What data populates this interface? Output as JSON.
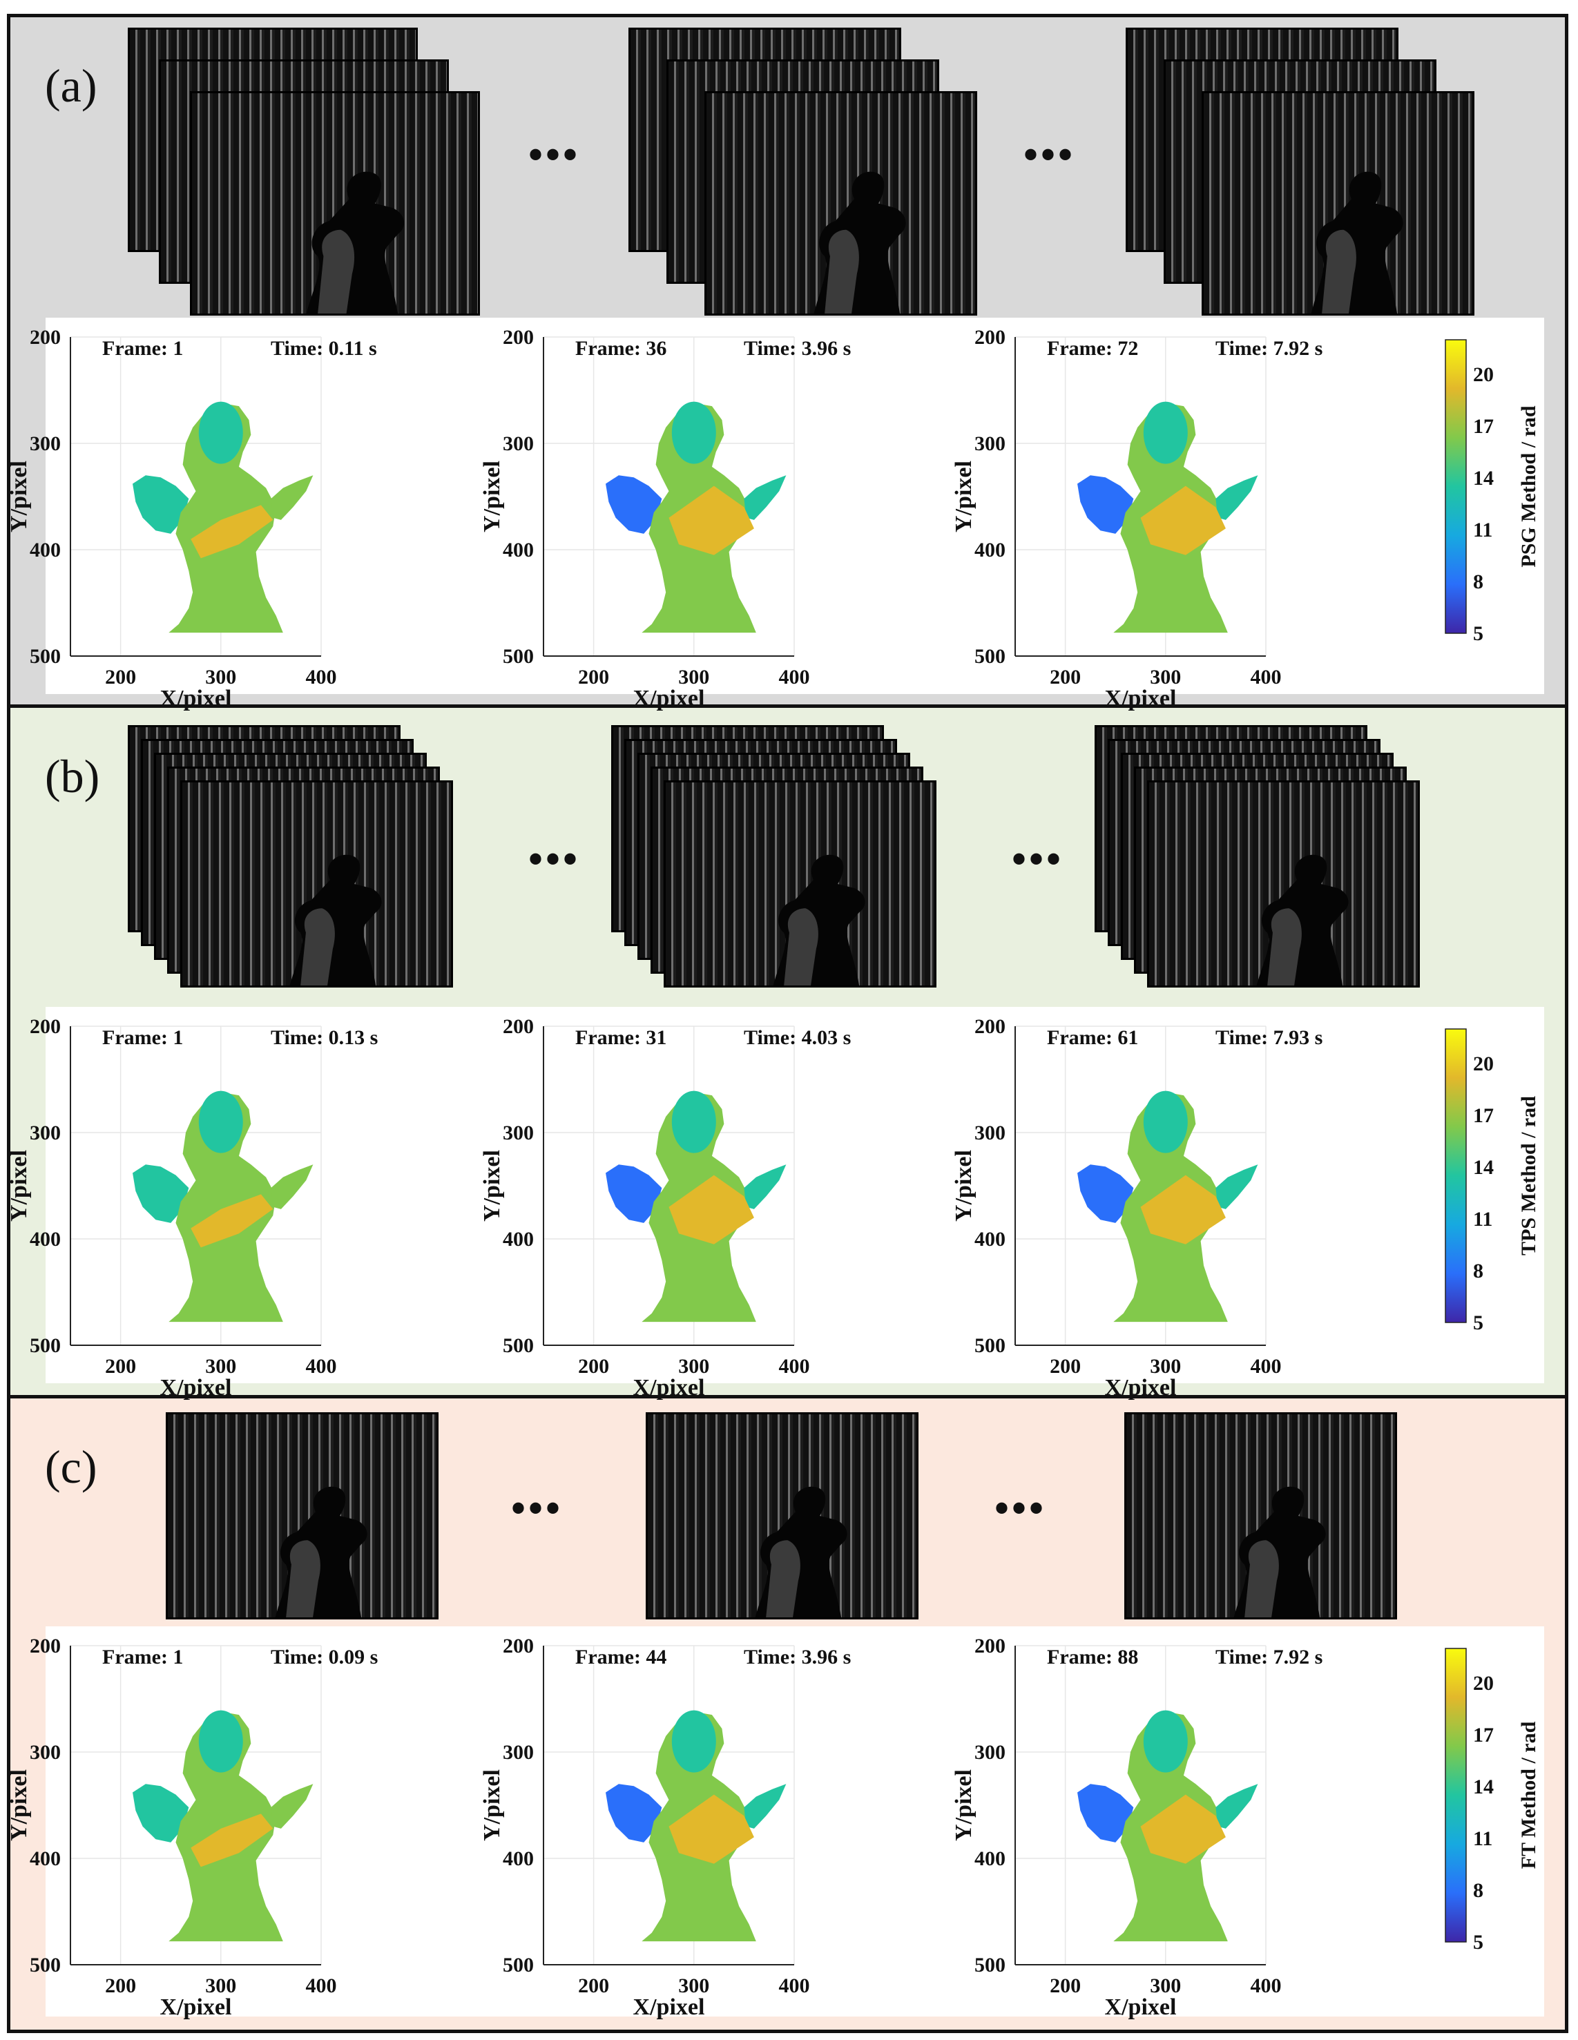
{
  "panels": [
    {
      "label": "(a)",
      "background": "#d9d9d9",
      "colorbar_title": "PSG Method / rad",
      "frames": [
        {
          "frame": "Frame: 1",
          "time": "Time: 0.11 s"
        },
        {
          "frame": "Frame: 36",
          "time": "Time: 3.96 s"
        },
        {
          "frame": "Frame: 72",
          "time": "Time: 7.92 s"
        }
      ]
    },
    {
      "label": "(b)",
      "background": "#e9f0df",
      "colorbar_title": "TPS Method / rad",
      "frames": [
        {
          "frame": "Frame: 1",
          "time": "Time: 0.13 s"
        },
        {
          "frame": "Frame: 31",
          "time": "Time: 4.03 s"
        },
        {
          "frame": "Frame: 61",
          "time": "Time: 7.93 s"
        }
      ]
    },
    {
      "label": "(c)",
      "background": "#fce8de",
      "colorbar_title": "FT Method / rad",
      "frames": [
        {
          "frame": "Frame: 1",
          "time": "Time: 0.09 s"
        },
        {
          "frame": "Frame: 44",
          "time": "Time: 3.96 s"
        },
        {
          "frame": "Frame: 88",
          "time": "Time: 7.92 s"
        }
      ]
    }
  ],
  "ellipsis": "•••",
  "axes": {
    "xlabel": "X/pixel",
    "ylabel": "Y/pixel",
    "xticks": [
      "200",
      "300",
      "400"
    ],
    "yticks": [
      "200",
      "300",
      "400",
      "500"
    ],
    "xlim": [
      150,
      400
    ],
    "ylim": [
      200,
      500
    ]
  },
  "colorbar": {
    "ticks": [
      "5",
      "8",
      "11",
      "14",
      "17",
      "20"
    ],
    "range": [
      5,
      22
    ],
    "colors": [
      "#3e26a8",
      "#2a6ffa",
      "#17a9e0",
      "#22c5a0",
      "#82c94b",
      "#e2b82b",
      "#f9fb0e"
    ]
  }
}
